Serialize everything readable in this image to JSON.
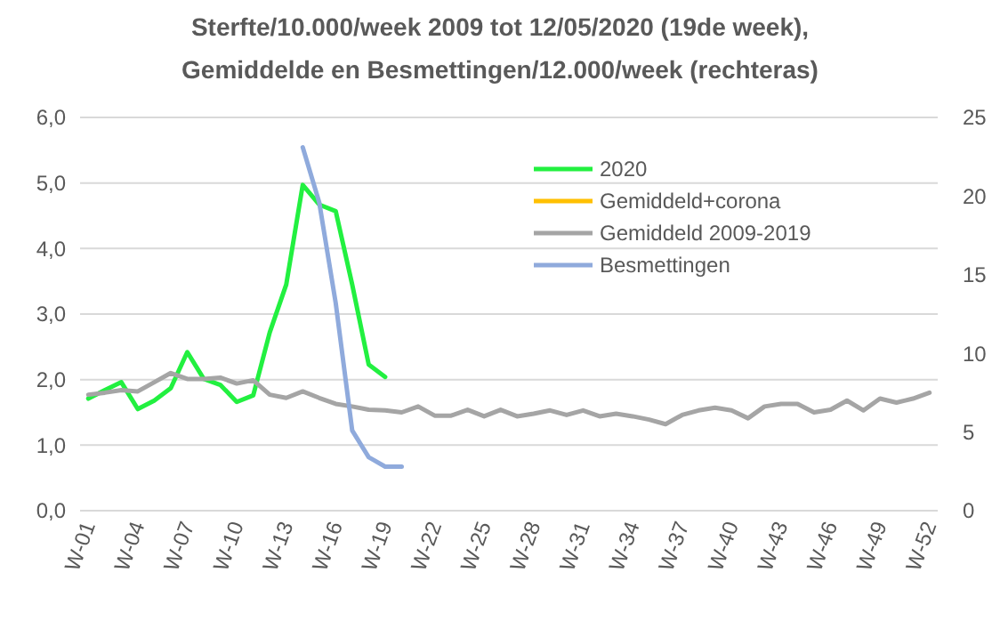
{
  "chart_data": {
    "type": "line",
    "title": "Sterfte/10.000/week  2009 tot 12/05/2020  (19de week),\nGemiddelde en Besmettingen/12.000/week  (rechteras)",
    "categories": [
      "W-01",
      null,
      null,
      "W-04",
      null,
      null,
      "W-07",
      null,
      null,
      "W-10",
      null,
      null,
      "W-13",
      null,
      null,
      "W-16",
      null,
      null,
      "W-19",
      null,
      null,
      "W-22",
      null,
      null,
      "W-25",
      null,
      null,
      "W-28",
      null,
      null,
      "W-31",
      null,
      null,
      "W-34",
      null,
      null,
      "W-37",
      null,
      null,
      "W-40",
      null,
      null,
      "W-43",
      null,
      null,
      "W-46",
      null,
      null,
      "W-49",
      null,
      null,
      "W-52"
    ],
    "series": [
      {
        "name": "2020",
        "color": "#22f040",
        "values": [
          1.71,
          1.84,
          1.96,
          1.55,
          1.68,
          1.87,
          2.42,
          2.01,
          1.92,
          1.66,
          1.76,
          2.72,
          3.45,
          4.97,
          4.67,
          4.57,
          3.45,
          2.23,
          2.04,
          null,
          null,
          null,
          null,
          null,
          null,
          null,
          null,
          null,
          null,
          null,
          null,
          null,
          null,
          null,
          null,
          null,
          null,
          null,
          null,
          null,
          null,
          null,
          null,
          null,
          null,
          null,
          null,
          null,
          null,
          null,
          null,
          null
        ]
      },
      {
        "name": "Gemiddeld+corona",
        "color": "#ffc000",
        "values": [
          null,
          null,
          null,
          null,
          null,
          null,
          null,
          null,
          null,
          null,
          null,
          null,
          null,
          null,
          null,
          null,
          null,
          null,
          null,
          null,
          null,
          null,
          null,
          null,
          null,
          null,
          null,
          null,
          null,
          null,
          null,
          null,
          null,
          null,
          null,
          null,
          null,
          null,
          null,
          null,
          null,
          null,
          null,
          null,
          null,
          null,
          null,
          null,
          null,
          null,
          null,
          null
        ]
      },
      {
        "name": "Gemiddeld 2009-2019",
        "color": "#a5a5a5",
        "values": [
          1.77,
          1.8,
          1.84,
          1.82,
          1.96,
          2.1,
          2.01,
          2.01,
          2.03,
          1.94,
          1.99,
          1.77,
          1.72,
          1.82,
          1.72,
          1.63,
          1.59,
          1.54,
          1.53,
          1.5,
          1.59,
          1.45,
          1.45,
          1.54,
          1.44,
          1.54,
          1.44,
          1.48,
          1.53,
          1.46,
          1.53,
          1.44,
          1.48,
          1.44,
          1.39,
          1.32,
          1.46,
          1.53,
          1.57,
          1.53,
          1.41,
          1.59,
          1.63,
          1.63,
          1.5,
          1.54,
          1.68,
          1.53,
          1.71,
          1.65,
          1.71,
          1.8
        ]
      },
      {
        "name": "Besmettingen",
        "color": "#8faadc",
        "axis": "y2",
        "values": [
          null,
          null,
          null,
          null,
          null,
          null,
          null,
          null,
          null,
          null,
          null,
          null,
          null,
          23.1,
          19.6,
          13.2,
          5.1,
          3.4,
          2.8,
          2.8,
          null,
          null,
          null,
          null,
          null,
          null,
          null,
          null,
          null,
          null,
          null,
          null,
          null,
          null,
          null,
          null,
          null,
          null,
          null,
          null,
          null,
          null,
          null,
          null,
          null,
          null,
          null,
          null,
          null,
          null,
          null,
          null
        ]
      }
    ],
    "ylim": [
      0,
      6
    ],
    "yticks": [
      {
        "value": 0,
        "label": "0,0"
      },
      {
        "value": 1,
        "label": "1,0"
      },
      {
        "value": 2,
        "label": "2,0"
      },
      {
        "value": 3,
        "label": "3,0"
      },
      {
        "value": 4,
        "label": "4,0"
      },
      {
        "value": 5,
        "label": "5,0"
      },
      {
        "value": 6,
        "label": "6,0"
      }
    ],
    "y2lim": [
      0,
      25
    ],
    "y2ticks": [
      0,
      5,
      10,
      15,
      20,
      25
    ],
    "grid": "y",
    "legend": "top right"
  }
}
